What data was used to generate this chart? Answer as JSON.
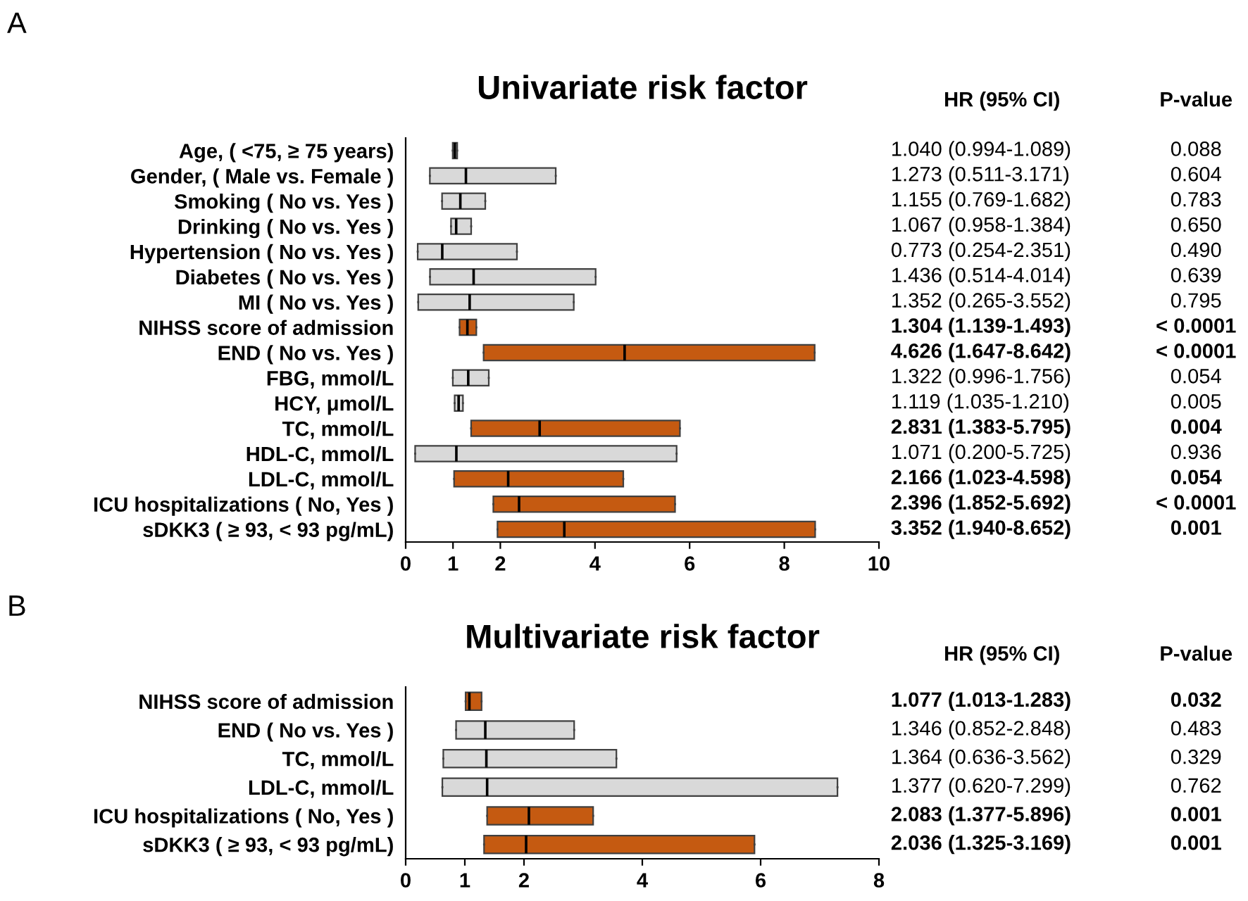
{
  "chart_data": [
    {
      "type": "box",
      "orientation": "horizontal",
      "title": "Univariate risk factor",
      "categories": [
        "Age, ( <75, ≥ 75 years)",
        "Gender, ( Male vs. Female )",
        "Smoking ( No vs. Yes )",
        "Drinking ( No vs. Yes )",
        "Hypertension ( No vs. Yes )",
        "Diabetes ( No vs. Yes )",
        "MI ( No vs. Yes )",
        "NIHSS score of admission",
        "END ( No vs. Yes )",
        "FBG, mmol/L",
        "HCY, μmol/L",
        "TC, mmol/L",
        "HDL-C, mmol/L",
        "LDL-C, mmol/L",
        "ICU hospitalizations ( No, Yes )",
        "sDKK3 ( ≥ 93, < 93 pg/mL)"
      ],
      "boxes": [
        {
          "low": 0.994,
          "q1": 0.994,
          "median": 1.04,
          "q3": 1.089,
          "high": 1.089
        },
        {
          "low": 0.511,
          "q1": 0.511,
          "median": 1.273,
          "q3": 3.171,
          "high": 3.171
        },
        {
          "low": 0.769,
          "q1": 0.769,
          "median": 1.155,
          "q3": 1.682,
          "high": 1.682
        },
        {
          "low": 0.958,
          "q1": 0.958,
          "median": 1.067,
          "q3": 1.384,
          "high": 1.384
        },
        {
          "low": 0.254,
          "q1": 0.254,
          "median": 0.773,
          "q3": 2.351,
          "high": 2.351
        },
        {
          "low": 0.514,
          "q1": 0.514,
          "median": 1.436,
          "q3": 4.014,
          "high": 4.014
        },
        {
          "low": 0.265,
          "q1": 0.265,
          "median": 1.352,
          "q3": 3.552,
          "high": 3.552
        },
        {
          "low": 1.139,
          "q1": 1.139,
          "median": 1.304,
          "q3": 1.493,
          "high": 1.493
        },
        {
          "low": 1.647,
          "q1": 1.647,
          "median": 4.626,
          "q3": 8.642,
          "high": 8.642
        },
        {
          "low": 0.996,
          "q1": 0.996,
          "median": 1.322,
          "q3": 1.756,
          "high": 1.756
        },
        {
          "low": 1.035,
          "q1": 1.035,
          "median": 1.119,
          "q3": 1.21,
          "high": 1.21
        },
        {
          "low": 1.383,
          "q1": 1.383,
          "median": 2.831,
          "q3": 5.795,
          "high": 5.795
        },
        {
          "low": 0.2,
          "q1": 0.2,
          "median": 1.071,
          "q3": 5.725,
          "high": 5.725
        },
        {
          "low": 1.023,
          "q1": 1.023,
          "median": 2.166,
          "q3": 4.598,
          "high": 4.598
        },
        {
          "low": 1.852,
          "q1": 1.852,
          "median": 2.396,
          "q3": 5.692,
          "high": 5.692
        },
        {
          "low": 1.94,
          "q1": 1.94,
          "median": 3.352,
          "q3": 8.652,
          "high": 8.652
        }
      ],
      "colors": [
        "#d9d9d9",
        "#d9d9d9",
        "#d9d9d9",
        "#d9d9d9",
        "#d9d9d9",
        "#d9d9d9",
        "#d9d9d9",
        "#c55a11",
        "#c55a11",
        "#d9d9d9",
        "#d9d9d9",
        "#c55a11",
        "#d9d9d9",
        "#c55a11",
        "#c55a11",
        "#c55a11"
      ],
      "value_labels": [
        "1.040 (0.994-1.089)",
        "1.273 (0.511-3.171)",
        "1.155 (0.769-1.682)",
        "1.067 (0.958-1.384)",
        "0.773 (0.254-2.351)",
        "1.436 (0.514-4.014)",
        "1.352 (0.265-3.552)",
        "1.304 (1.139-1.493)",
        "4.626 (1.647-8.642)",
        "1.322 (0.996-1.756)",
        "1.119 (1.035-1.210)",
        "2.831 (1.383-5.795)",
        "1.071 (0.200-5.725)",
        "2.166 (1.023-4.598)",
        "2.396 (1.852-5.692)",
        "3.352 (1.940-8.652)"
      ],
      "annotations": [
        "A",
        "HR (95% CI)",
        "P-value",
        "0.088",
        "0.604",
        "0.783",
        "0.650",
        "0.490",
        "0.639",
        "0.795",
        "< 0.0001",
        "< 0.0001",
        "0.054",
        "0.005",
        "0.004",
        "0.936",
        "0.054",
        "< 0.0001",
        "0.001"
      ],
      "xlim": [
        0,
        10
      ],
      "xticks": [
        0,
        1,
        2,
        4,
        6,
        8,
        10
      ],
      "grid": false
    },
    {
      "type": "box",
      "orientation": "horizontal",
      "title": "Multivariate risk factor",
      "categories": [
        "NIHSS score of admission",
        "END ( No vs. Yes )",
        "TC, mmol/L",
        "LDL-C, mmol/L",
        "ICU hospitalizations ( No, Yes )",
        "sDKK3 ( ≥ 93, < 93 pg/mL)"
      ],
      "boxes": [
        {
          "low": 1.013,
          "q1": 1.013,
          "median": 1.077,
          "q3": 1.283,
          "high": 1.283
        },
        {
          "low": 0.852,
          "q1": 0.852,
          "median": 1.346,
          "q3": 2.848,
          "high": 2.848
        },
        {
          "low": 0.636,
          "q1": 0.636,
          "median": 1.364,
          "q3": 3.562,
          "high": 3.562
        },
        {
          "low": 0.62,
          "q1": 0.62,
          "median": 1.377,
          "q3": 7.299,
          "high": 7.299
        },
        {
          "low": 1.377,
          "q1": 1.377,
          "median": 2.083,
          "q3": 3.169,
          "high": 3.169
        },
        {
          "low": 1.325,
          "q1": 1.325,
          "median": 2.036,
          "q3": 5.896,
          "high": 5.896
        }
      ],
      "colors": [
        "#c55a11",
        "#d9d9d9",
        "#d9d9d9",
        "#d9d9d9",
        "#c55a11",
        "#c55a11"
      ],
      "value_labels": [
        "1.077 (1.013-1.283)",
        "1.346 (0.852-2.848)",
        "1.364 (0.636-3.562)",
        "1.377 (0.620-7.299)",
        "2.083 (1.377-5.896)",
        "2.036 (1.325-3.169)"
      ],
      "annotations": [
        "B",
        "HR (95% CI)",
        "P-value",
        "0.032",
        "0.483",
        "0.329",
        "0.762",
        "0.001",
        "0.001"
      ],
      "xlim": [
        0,
        8
      ],
      "xticks": [
        0,
        1,
        2,
        4,
        6,
        8
      ],
      "grid": false
    }
  ]
}
